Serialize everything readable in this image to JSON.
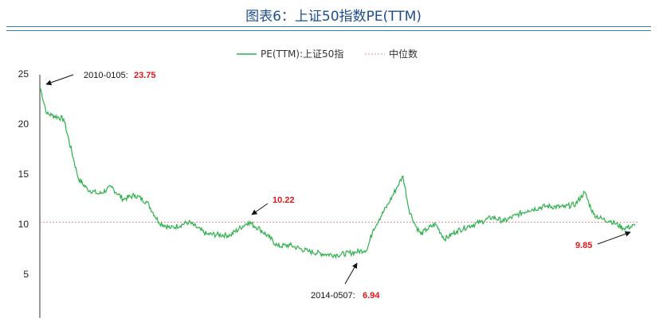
{
  "header": {
    "title": "图表6：上证50指数PE(TTM)"
  },
  "legend": {
    "series_label": "PE(TTM):上证50指",
    "median_label": "中位数"
  },
  "colors": {
    "series": "#2db24b",
    "median": "#e58f8f",
    "title": "#1f4e8c",
    "rule": "#2f7fc1",
    "highlight": "#e3161b"
  },
  "chart_data": {
    "type": "line",
    "title": "图表6：上证50指数PE(TTM)",
    "xlabel": "",
    "ylabel": "",
    "ylim": [
      0,
      25
    ],
    "yticks": [
      "25",
      "20",
      "15",
      "10",
      "5"
    ],
    "grid": false,
    "legend_position": "top",
    "median": 10.2,
    "series": [
      {
        "name": "PE(TTM):上证50指",
        "x": [
          0,
          0.012,
          0.02,
          0.04,
          0.065,
          0.08,
          0.1,
          0.12,
          0.14,
          0.16,
          0.18,
          0.2,
          0.22,
          0.25,
          0.28,
          0.32,
          0.35,
          0.37,
          0.385,
          0.4,
          0.42,
          0.45,
          0.48,
          0.5,
          0.53,
          0.55,
          0.56,
          0.57,
          0.585,
          0.6,
          0.61,
          0.62,
          0.63,
          0.64,
          0.65,
          0.665,
          0.68,
          0.7,
          0.72,
          0.74,
          0.76,
          0.78,
          0.8,
          0.82,
          0.85,
          0.88,
          0.9,
          0.915,
          0.93,
          0.945,
          0.96,
          0.98,
          1.0
        ],
        "values": [
          23.75,
          21.0,
          20.9,
          20.5,
          14.5,
          13.5,
          13.0,
          13.7,
          12.5,
          12.9,
          12.2,
          10.2,
          9.6,
          10.2,
          9.0,
          8.9,
          10.22,
          9.5,
          8.7,
          7.8,
          7.9,
          7.3,
          7.0,
          6.94,
          7.2,
          7.5,
          9.5,
          10.5,
          12.0,
          13.7,
          14.8,
          11.5,
          10.0,
          9.0,
          9.5,
          10.0,
          8.5,
          9.3,
          9.8,
          10.2,
          10.7,
          10.3,
          10.9,
          11.4,
          11.8,
          11.7,
          12.0,
          13.2,
          11.0,
          10.5,
          10.3,
          9.6,
          9.85
        ]
      }
    ],
    "annotations": [
      {
        "label": "2010-0105:",
        "value": "23.75"
      },
      {
        "label": "",
        "value": "10.22"
      },
      {
        "label": "2014-0507:",
        "value": "6.94"
      },
      {
        "label": "",
        "value": "9.85"
      }
    ]
  }
}
